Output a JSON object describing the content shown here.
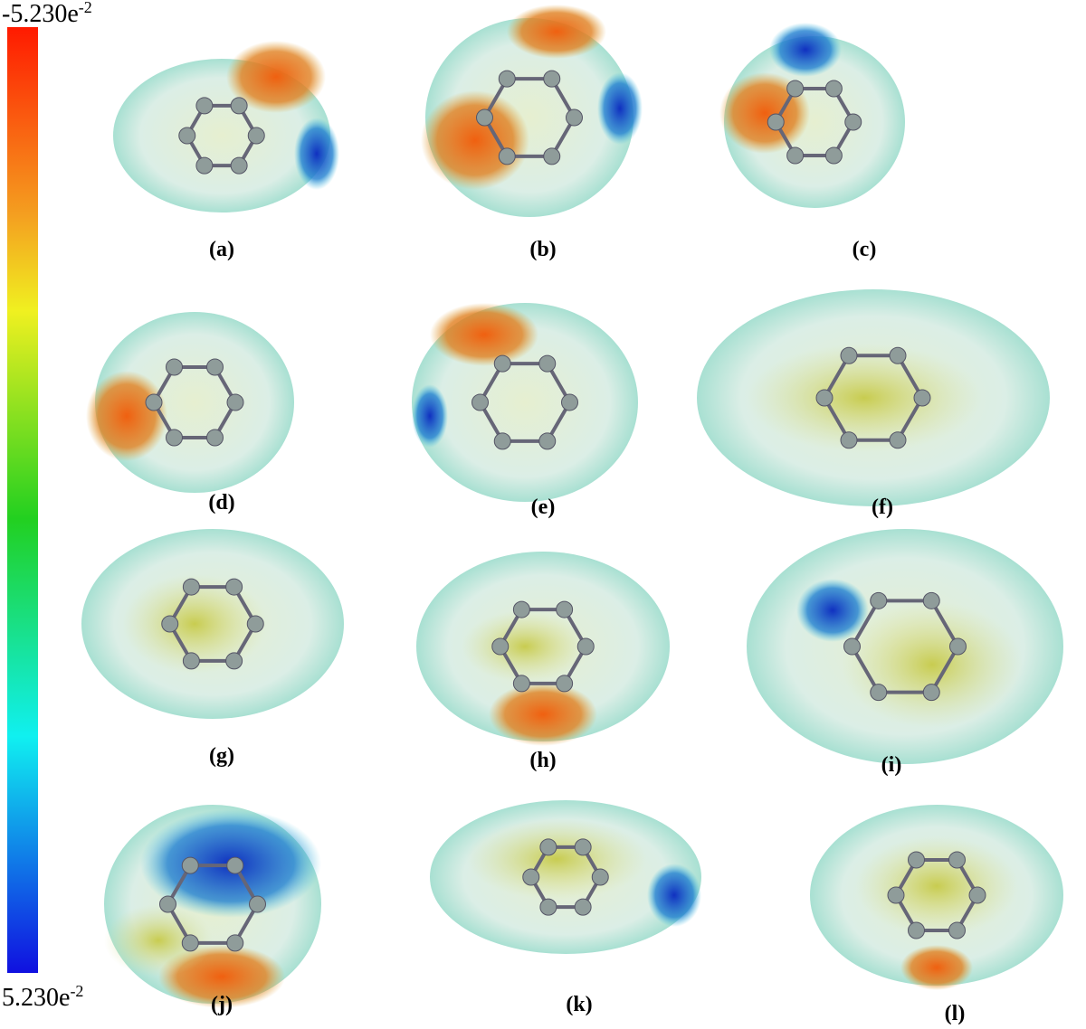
{
  "colorbar": {
    "top": {
      "mantissa": "-5.230e",
      "exponent": "-2"
    },
    "bottom": {
      "mantissa": "5.230e",
      "exponent": "-2"
    }
  },
  "panels": [
    {
      "label": "(a)"
    },
    {
      "label": "(b)"
    },
    {
      "label": "(c)"
    },
    {
      "label": "(d)"
    },
    {
      "label": "(e)"
    },
    {
      "label": "(f)"
    },
    {
      "label": "(g)"
    },
    {
      "label": "(h)"
    },
    {
      "label": "(i)"
    },
    {
      "label": "(j)"
    },
    {
      "label": "(k)"
    },
    {
      "label": "(l)"
    }
  ]
}
